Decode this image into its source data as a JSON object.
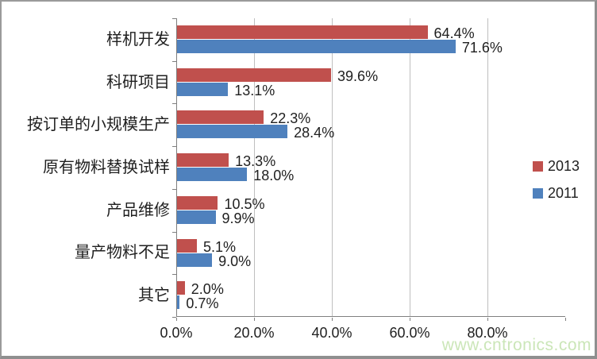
{
  "chart_data": {
    "type": "bar",
    "orientation": "horizontal",
    "title": "",
    "categories": [
      "样机开发",
      "科研项目",
      "按订单的小规模生产",
      "原有物料替换试样",
      "产品维修",
      "量产物料不足",
      "其它"
    ],
    "series": [
      {
        "name": "2013",
        "color": "#C0504D",
        "values": [
          64.4,
          39.6,
          22.3,
          13.3,
          10.5,
          5.1,
          2.0
        ]
      },
      {
        "name": "2011",
        "color": "#4F81BD",
        "values": [
          71.6,
          13.1,
          28.4,
          18.0,
          9.9,
          9.0,
          0.7
        ]
      }
    ],
    "data_label_format": "percent_one_decimal",
    "x_tick_labels": [
      "0.0%",
      "20.0%",
      "40.0%",
      "60.0%",
      "80.0%"
    ],
    "xlim": [
      0,
      100
    ],
    "grid": true,
    "legend_position": "right",
    "legend_entries": [
      "2013",
      "2011"
    ]
  },
  "colors": {
    "series_2013": "#C0504D",
    "series_2011": "#4F81BD",
    "gridline": "#bfbfbf",
    "axis_line": "#7f7f7f",
    "text": "#1f1f1f",
    "watermark": "#cbe6b8",
    "frame_border": "#8f8f8f"
  },
  "watermark": "www.cntronics.com"
}
